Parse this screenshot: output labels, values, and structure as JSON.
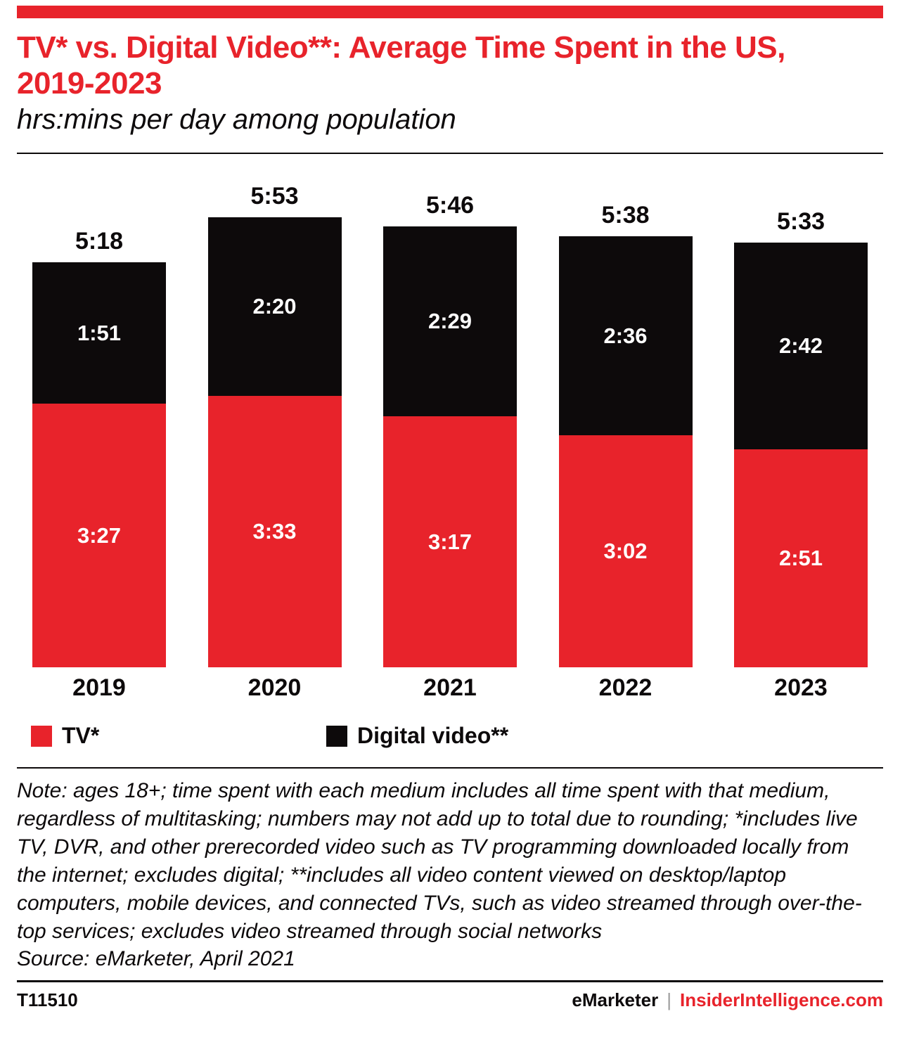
{
  "header": {
    "title": "TV* vs. Digital Video**: Average Time Spent in the US, 2019-2023",
    "subtitle": "hrs:mins per day among population"
  },
  "chart_data": {
    "type": "bar",
    "stacked": true,
    "title": "TV* vs. Digital Video**: Average Time Spent in the US, 2019-2023",
    "ylabel": "hrs:mins per day among population",
    "legend_position": "bottom",
    "grid": false,
    "categories": [
      "2019",
      "2020",
      "2021",
      "2022",
      "2023"
    ],
    "series": [
      {
        "name": "TV*",
        "color": "#e8232b",
        "labels": [
          "3:27",
          "3:33",
          "3:17",
          "3:02",
          "2:51"
        ],
        "values_minutes": [
          207,
          213,
          197,
          182,
          171
        ]
      },
      {
        "name": "Digital video**",
        "color": "#0d0a0b",
        "labels": [
          "1:51",
          "2:20",
          "2:29",
          "2:36",
          "2:42"
        ],
        "values_minutes": [
          111,
          140,
          149,
          156,
          162
        ]
      }
    ],
    "totals": {
      "labels": [
        "5:18",
        "5:53",
        "5:46",
        "5:38",
        "5:33"
      ],
      "values_minutes": [
        318,
        353,
        346,
        338,
        333
      ]
    }
  },
  "legend": [
    {
      "label": "TV*",
      "color": "#e8232b"
    },
    {
      "label": "Digital video**",
      "color": "#0d0a0b"
    }
  ],
  "note": "Note: ages 18+; time spent with each medium includes all time spent with that medium, regardless of multitasking; numbers may not add up to total due to rounding; *includes live TV, DVR, and other prerecorded video such as TV programming downloaded locally from the internet; excludes digital; **includes all video content viewed on desktop/laptop computers, mobile devices, and connected TVs, such as video streamed through over-the-top services; excludes video streamed through social networks",
  "source": "Source: eMarketer, April 2021",
  "footer": {
    "id": "T11510",
    "brand": "eMarketer",
    "separator": "|",
    "site": "InsiderIntelligence.com"
  },
  "colors": {
    "accent_red": "#e8232b",
    "ink_black": "#0d0a0b"
  }
}
